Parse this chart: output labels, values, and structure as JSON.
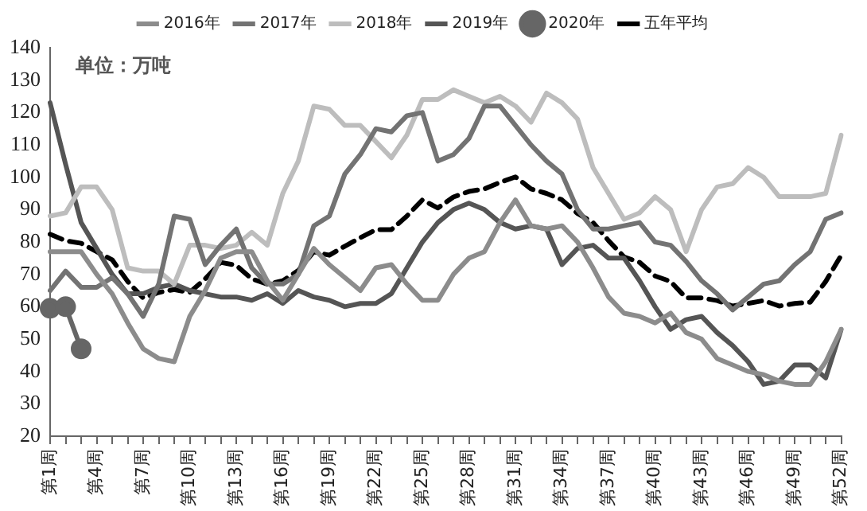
{
  "chart_data": {
    "type": "line",
    "categories": [
      "第1周",
      null,
      null,
      "第4周",
      null,
      null,
      "第7周",
      null,
      null,
      "第10周",
      null,
      null,
      "第13周",
      null,
      null,
      "第16周",
      null,
      null,
      "第19周",
      null,
      null,
      "第22周",
      null,
      null,
      "第25周",
      null,
      null,
      "第28周",
      null,
      null,
      "第31周",
      null,
      null,
      "第34周",
      null,
      null,
      "第37周",
      null,
      null,
      "第40周",
      null,
      null,
      "第43周",
      null,
      null,
      "第46周",
      null,
      null,
      "第49周",
      null,
      null,
      "第52周"
    ],
    "ylim": [
      20,
      140
    ],
    "yticks": [
      20,
      30,
      40,
      50,
      60,
      70,
      80,
      90,
      100,
      110,
      120,
      130,
      140
    ],
    "grid": false,
    "legend": "top",
    "marker": "none",
    "line_style": "solid",
    "annotations": [
      "单位：万吨"
    ],
    "series": [
      {
        "name": "2016年",
        "color": "#8c8c8c",
        "values": [
          77,
          77,
          77,
          70,
          64,
          55,
          47,
          44,
          43,
          57,
          65,
          75,
          77,
          77,
          68,
          62,
          70,
          78,
          73,
          69,
          65,
          72,
          73,
          67,
          62,
          62,
          70,
          75,
          77,
          86,
          93,
          85,
          84,
          85,
          80,
          72,
          63,
          58,
          57,
          55,
          58,
          52,
          50,
          44,
          42,
          40,
          39,
          37,
          36,
          36,
          43,
          53
        ]
      },
      {
        "name": "2017年",
        "color": "#737373",
        "values": [
          65,
          71,
          66,
          66,
          69,
          64,
          57,
          67,
          88,
          87,
          73,
          79,
          84,
          72,
          67,
          67,
          70,
          85,
          88,
          101,
          107,
          115,
          114,
          119,
          120,
          105,
          107,
          112,
          122,
          122,
          116,
          110,
          105,
          101,
          90,
          84,
          84,
          85,
          86,
          80,
          79,
          74,
          68,
          64,
          59,
          63,
          67,
          68,
          73,
          77,
          87,
          89
        ]
      },
      {
        "name": "2018年",
        "color": "#bdbdbd",
        "values": [
          88,
          89,
          97,
          97,
          90,
          72,
          71,
          71,
          67,
          79,
          79,
          78,
          79,
          83,
          79,
          95,
          105,
          122,
          121,
          116,
          116,
          111,
          106,
          113,
          124,
          124,
          127,
          125,
          123,
          125,
          122,
          117,
          126,
          123,
          118,
          103,
          95,
          87,
          89,
          94,
          90,
          77,
          90,
          97,
          98,
          103,
          100,
          94,
          94,
          94,
          95,
          113
        ]
      },
      {
        "name": "2019年",
        "color": "#555555",
        "values": [
          123,
          104,
          86,
          78,
          70,
          64,
          64,
          66,
          67,
          65,
          64,
          63,
          63,
          62,
          64,
          61,
          65,
          63,
          62,
          60,
          61,
          61,
          64,
          72,
          80,
          86,
          90,
          92,
          90,
          86,
          84,
          85,
          84,
          73,
          78,
          79,
          75,
          75,
          68,
          60,
          53,
          56,
          57,
          52,
          48,
          43,
          36,
          37,
          42,
          42,
          38,
          53
        ]
      },
      {
        "name": "2020年",
        "color": "#666666",
        "marker": "circle",
        "values": [
          59.5,
          60,
          47,
          null,
          null,
          null,
          null,
          null,
          null,
          null,
          null,
          null,
          null,
          null,
          null,
          null,
          null,
          null,
          null,
          null,
          null,
          null,
          null,
          null,
          null,
          null,
          null,
          null,
          null,
          null,
          null,
          null,
          null,
          null,
          null,
          null,
          null,
          null,
          null,
          null,
          null,
          null,
          null,
          null,
          null,
          null,
          null,
          null,
          null,
          null,
          null,
          null
        ]
      },
      {
        "name": "五年平均",
        "color": "#000000",
        "line_style": "dashed",
        "values": [
          82.4,
          80.4,
          79.6,
          77,
          74.5,
          67.8,
          62.7,
          64.4,
          65.3,
          64.4,
          68.6,
          73.7,
          72.8,
          68.6,
          67,
          68,
          71.2,
          77,
          75.9,
          78.7,
          81.3,
          83.8,
          83.8,
          88,
          93,
          90.5,
          93.9,
          95.6,
          96.4,
          98.4,
          100.1,
          96.4,
          95,
          93,
          88.8,
          86,
          80.4,
          75.4,
          73.7,
          69.5,
          67.8,
          62.7,
          62.7,
          61.9,
          60.2,
          61,
          61.9,
          60.2,
          61,
          61.4,
          67.8,
          75.9
        ]
      }
    ]
  }
}
